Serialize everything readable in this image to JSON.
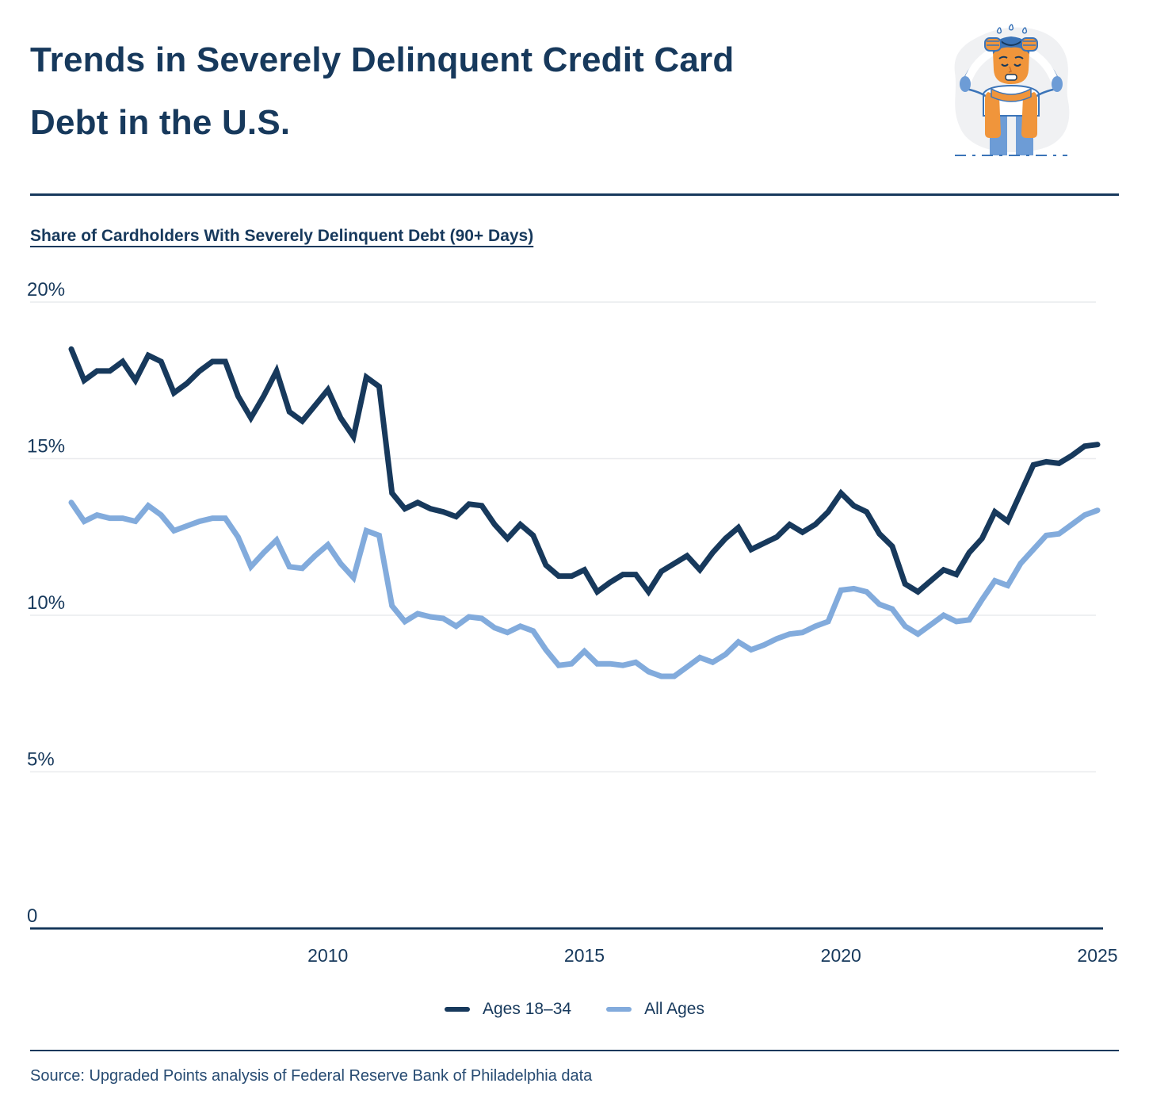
{
  "header": {
    "title_line1": "Trends in Severely Delinquent Credit Card",
    "title_line2": "Debt in the U.S.",
    "illustration_icon": "stressed-person-illustration"
  },
  "chart": {
    "subtitle": "Share of Cardholders With Severely Delinquent Debt (90+ Days)",
    "source": "Source: Upgraded Points analysis of Federal Reserve Bank of Philadelphia data"
  },
  "colors": {
    "navy": "#17395C",
    "light_blue": "#82ABDC",
    "grid": "#E9EBEE",
    "axis": "#17395C",
    "source_text": "#274B72",
    "illustration_orange": "#F0953B",
    "illustration_blue": "#3B74B8",
    "illustration_pants": "#6D9CD6",
    "illustration_blob": "#F0F1F3"
  },
  "legend": {
    "items": [
      {
        "label": "Ages 18–34",
        "color": "#17395C"
      },
      {
        "label": "All Ages",
        "color": "#82ABDC"
      }
    ]
  },
  "chart_data": {
    "type": "line",
    "title": "Share of Cardholders With Severely Delinquent Debt (90+ Days)",
    "unit": "percent",
    "x_start": 2005.0,
    "x_step": 0.25,
    "points_per_series": 81,
    "x_tick_values": [
      2010,
      2015,
      2020,
      2025
    ],
    "x_tick_labels": [
      "2010",
      "2015",
      "2020",
      "2025"
    ],
    "y_tick_values": [
      20,
      15,
      10,
      5,
      0
    ],
    "y_tick_labels": [
      "20%",
      "15%",
      "10%",
      "5%",
      "0"
    ],
    "ylim": [
      0,
      20
    ],
    "xlim": [
      2005,
      2025
    ],
    "grid": true,
    "legend_position": "bottom",
    "series": [
      {
        "name": "Ages 18–34",
        "color": "#17395C",
        "values": [
          18.5,
          17.5,
          17.8,
          17.8,
          18.1,
          17.5,
          18.3,
          18.1,
          17.1,
          17.4,
          17.8,
          18.1,
          18.1,
          17.0,
          16.3,
          17.0,
          17.8,
          16.5,
          16.2,
          16.7,
          17.2,
          16.3,
          15.7,
          17.6,
          17.3,
          13.9,
          13.4,
          13.6,
          13.4,
          13.3,
          13.15,
          13.55,
          13.5,
          12.9,
          12.45,
          12.9,
          12.55,
          11.6,
          11.25,
          11.25,
          11.45,
          10.75,
          11.05,
          11.3,
          11.3,
          10.75,
          11.4,
          11.65,
          11.9,
          11.45,
          12.0,
          12.45,
          12.8,
          12.1,
          12.3,
          12.5,
          12.9,
          12.65,
          12.9,
          13.3,
          13.9,
          13.5,
          13.3,
          12.6,
          12.2,
          11.0,
          10.75,
          11.1,
          11.45,
          11.3,
          12.0,
          12.45,
          13.3,
          13.0,
          13.9,
          14.8,
          14.9,
          14.85,
          15.1,
          15.4,
          15.45
        ]
      },
      {
        "name": "All Ages",
        "color": "#82ABDC",
        "values": [
          13.6,
          13.0,
          13.2,
          13.1,
          13.1,
          13.0,
          13.5,
          13.2,
          12.7,
          12.85,
          13.0,
          13.1,
          13.1,
          12.5,
          11.55,
          12.0,
          12.4,
          11.55,
          11.5,
          11.9,
          12.25,
          11.65,
          11.2,
          12.7,
          12.55,
          10.3,
          9.8,
          10.05,
          9.95,
          9.9,
          9.65,
          9.95,
          9.9,
          9.6,
          9.45,
          9.65,
          9.5,
          8.9,
          8.4,
          8.45,
          8.85,
          8.45,
          8.45,
          8.4,
          8.5,
          8.2,
          8.05,
          8.05,
          8.35,
          8.65,
          8.5,
          8.75,
          9.15,
          8.9,
          9.05,
          9.25,
          9.4,
          9.45,
          9.65,
          9.8,
          10.8,
          10.85,
          10.75,
          10.35,
          10.2,
          9.65,
          9.4,
          9.7,
          10.0,
          9.8,
          9.85,
          10.5,
          11.1,
          10.95,
          11.65,
          12.1,
          12.55,
          12.6,
          12.9,
          13.2,
          13.35
        ]
      }
    ]
  }
}
